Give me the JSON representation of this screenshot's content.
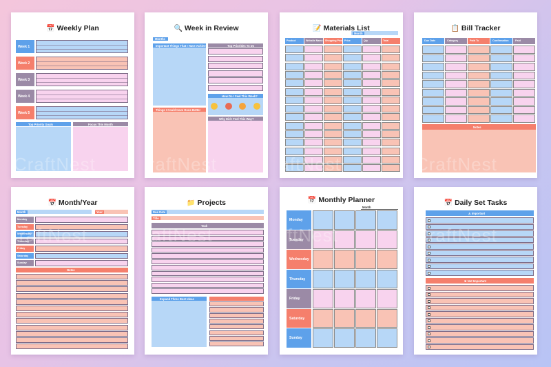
{
  "watermark": "CraftNest",
  "colors": {
    "blue": "#b7d7f7",
    "blue_dark": "#5ea1ea",
    "pink": "#f8d3ee",
    "salmon": "#f9c3b5",
    "salmon_dark": "#f57f6c",
    "mauve": "#9b8aa6",
    "purple_line": "#7d6b87"
  },
  "weekly_plan": {
    "title": "Weekly Plan",
    "icon": "calendar-icon",
    "weeks": [
      "Week 1",
      "Week 2",
      "Week 3",
      "Week 4",
      "Week 5"
    ],
    "bottom_left": "Top Priority Goals",
    "bottom_right": "Focus This Month"
  },
  "week_in_review": {
    "title": "Week in Review",
    "icon": "magnifier-icon",
    "months_tag": "Months",
    "important": "Important Things That I Have Achieved",
    "top_priorities": "Top Priorities To Do",
    "how_feel": "How Do I Feel This Week?",
    "changes": "Things I Could Have Done Better",
    "why_feel": "Why Did I Feel This Way?"
  },
  "materials_list": {
    "title": "Materials List",
    "icon": "notepad-icon",
    "month_tag": "Month",
    "columns": [
      "Product",
      "Website Name",
      "Shopping Price",
      "Price",
      "Qty",
      "Total"
    ]
  },
  "bill_tracker": {
    "title": "Bill Tracker",
    "icon": "clipboard-icon",
    "columns": [
      "Due Date",
      "Category",
      "Paid To",
      "Confirmation",
      "Paid"
    ],
    "notes": "Notes"
  },
  "month_year": {
    "title": "Month/Year",
    "icon": "calendar-icon",
    "month_label": "Month",
    "year_label": "Year",
    "days": [
      "Monday",
      "Tuesday",
      "Wednesday",
      "Thursday",
      "Friday",
      "Saturday",
      "Sunday"
    ],
    "notes": "Notes"
  },
  "projects": {
    "title": "Projects",
    "icon": "folder-icon",
    "due_date": "Due Date",
    "title_label": "Title",
    "task": "Task",
    "expand": "Expand Three Best Ideas"
  },
  "monthly_planner": {
    "title": "Monthly Planner",
    "icon": "calendar-icon",
    "month_label": "Month",
    "days": [
      "Monday",
      "Tuesday",
      "Wednesday",
      "Thursday",
      "Friday",
      "Saturday",
      "Sunday"
    ]
  },
  "daily_set_tasks": {
    "title": "Daily Set Tasks",
    "icon": "calendar-icon",
    "important": "Important",
    "not_important": "Not Important"
  }
}
